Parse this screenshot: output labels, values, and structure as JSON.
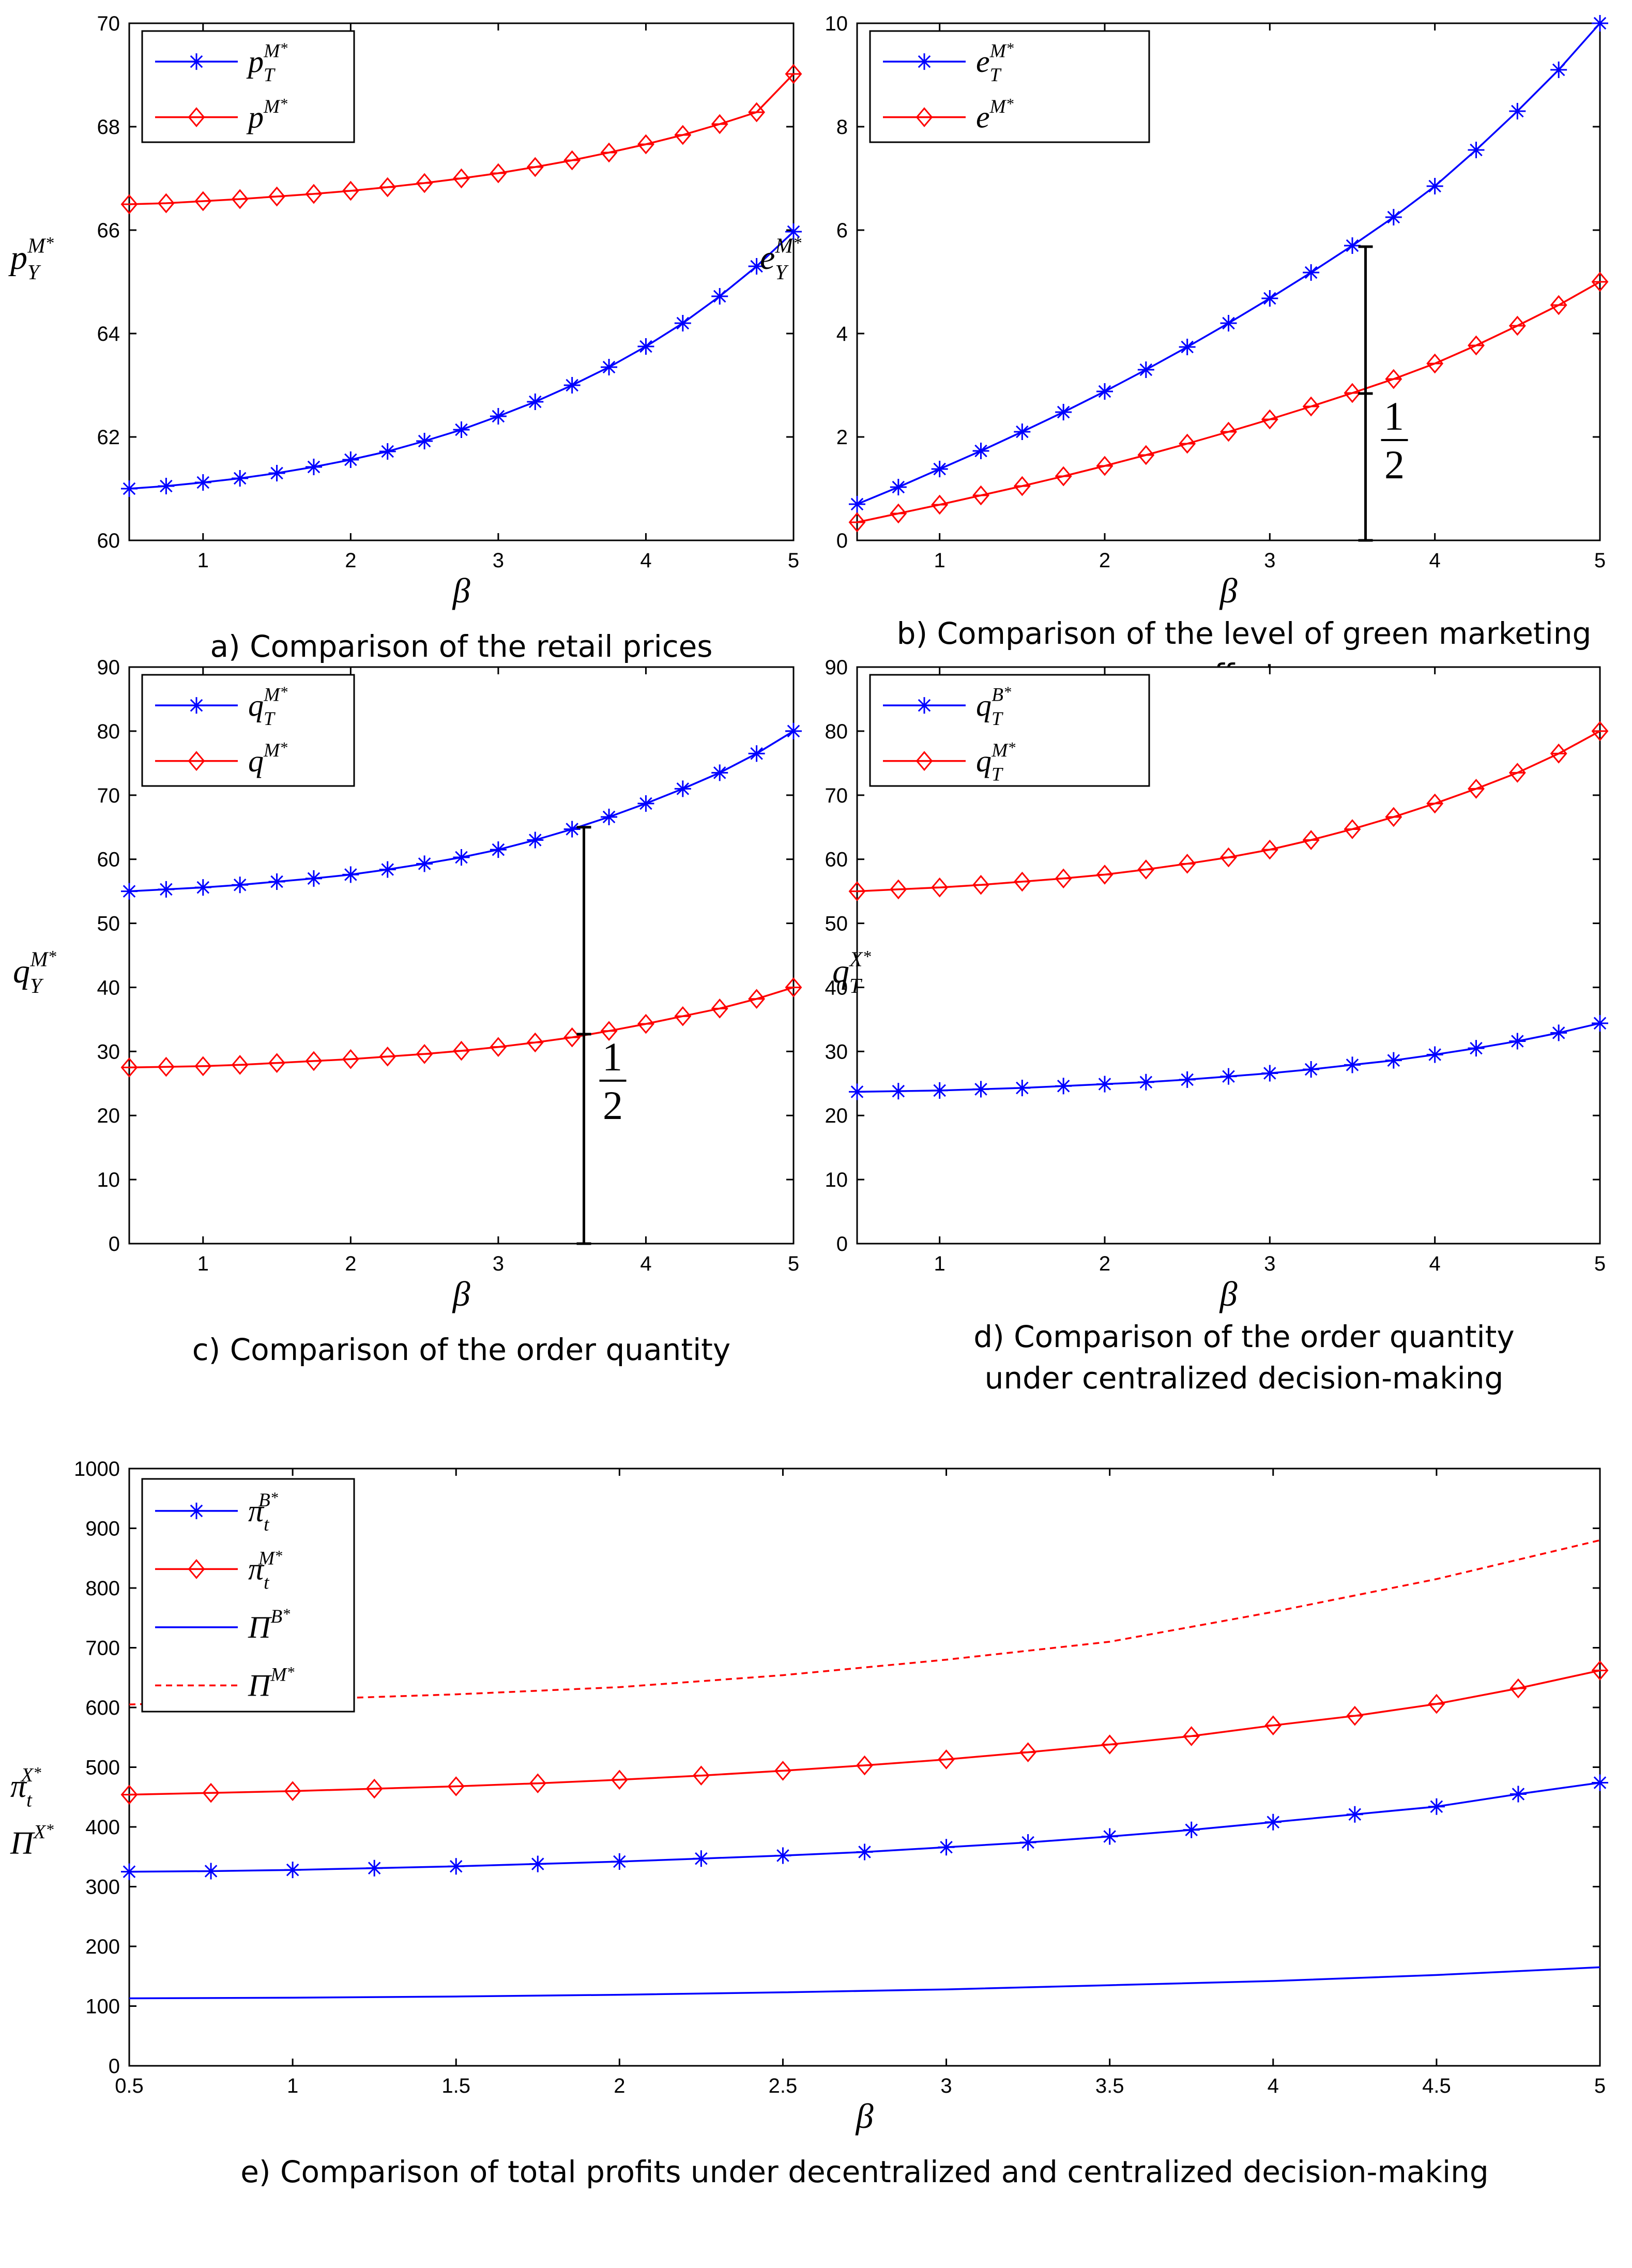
{
  "colors": {
    "blue": "#0000ff",
    "red": "#ff0000",
    "axis": "#000000",
    "background": "#ffffff"
  },
  "chart_data": [
    {
      "id": "a",
      "type": "line",
      "caption": "a) Comparison of the retail prices",
      "xlabel": "β",
      "ylabel": {
        "base": "p",
        "sub": "Y",
        "sup": "M",
        "star": "*"
      },
      "xlim": [
        0.5,
        5
      ],
      "ylim": [
        60,
        70
      ],
      "xticks": [
        1,
        2,
        3,
        4,
        5
      ],
      "xtick_labels": [
        "1",
        "2",
        "3",
        "4",
        "5"
      ],
      "yticks": [
        60,
        62,
        64,
        66,
        68,
        70
      ],
      "ytick_labels": [
        "60",
        "62",
        "64",
        "66",
        "68",
        "70"
      ],
      "legend_position": "top-left",
      "series": [
        {
          "name": "p_T^M*",
          "label": {
            "base": "p",
            "sub": "T",
            "sup": "M",
            "star": "*"
          },
          "color": "#0000ff",
          "marker": "star",
          "line": "solid",
          "x": [
            0.5,
            0.75,
            1,
            1.25,
            1.5,
            1.75,
            2,
            2.25,
            2.5,
            2.75,
            3,
            3.25,
            3.5,
            3.75,
            4,
            4.25,
            4.5,
            4.75,
            5
          ],
          "y": [
            61.0,
            61.05,
            61.12,
            61.2,
            61.3,
            61.42,
            61.56,
            61.72,
            61.92,
            62.14,
            62.4,
            62.68,
            63.0,
            63.35,
            63.75,
            64.2,
            64.72,
            65.3,
            65.97
          ]
        },
        {
          "name": "p^M*",
          "label": {
            "base": "p",
            "sub": "",
            "sup": "M",
            "star": "*"
          },
          "color": "#ff0000",
          "marker": "diamond",
          "line": "solid",
          "x": [
            0.5,
            0.75,
            1,
            1.25,
            1.5,
            1.75,
            2,
            2.25,
            2.5,
            2.75,
            3,
            3.25,
            3.5,
            3.75,
            4,
            4.25,
            4.5,
            4.75,
            5
          ],
          "y": [
            66.5,
            66.52,
            66.56,
            66.6,
            66.65,
            66.7,
            66.76,
            66.83,
            66.91,
            67.0,
            67.1,
            67.22,
            67.35,
            67.5,
            67.66,
            67.84,
            68.05,
            68.28,
            69.02
          ]
        }
      ]
    },
    {
      "id": "b",
      "type": "line",
      "caption_lines": [
        "b) Comparison of the level of green marketing",
        "efforts"
      ],
      "xlabel": "β",
      "ylabel": {
        "base": "e",
        "sub": "Y",
        "sup": "M",
        "star": "*"
      },
      "xlim": [
        0.5,
        5
      ],
      "ylim": [
        0,
        10
      ],
      "xticks": [
        1,
        2,
        3,
        4,
        5
      ],
      "xtick_labels": [
        "1",
        "2",
        "3",
        "4",
        "5"
      ],
      "yticks": [
        0,
        2,
        4,
        6,
        8,
        10
      ],
      "ytick_labels": [
        "0",
        "2",
        "4",
        "6",
        "8",
        "10"
      ],
      "legend_position": "top-left",
      "annotation": {
        "x": 3.58,
        "from": 0,
        "to": 5.68,
        "mark": 2.84,
        "numerator": "1",
        "denominator": "2"
      },
      "series": [
        {
          "name": "e_T^M*",
          "label": {
            "base": "e",
            "sub": "T",
            "sup": "M",
            "star": "*"
          },
          "color": "#0000ff",
          "marker": "star",
          "line": "solid",
          "x": [
            0.5,
            0.75,
            1,
            1.25,
            1.5,
            1.75,
            2,
            2.25,
            2.5,
            2.75,
            3,
            3.25,
            3.5,
            3.75,
            4,
            4.25,
            4.5,
            4.75,
            5
          ],
          "y": [
            0.7,
            1.03,
            1.38,
            1.73,
            2.1,
            2.48,
            2.88,
            3.3,
            3.74,
            4.2,
            4.68,
            5.18,
            5.7,
            6.25,
            6.85,
            7.55,
            8.3,
            9.1,
            10.0
          ]
        },
        {
          "name": "e^M*",
          "label": {
            "base": "e",
            "sub": "",
            "sup": "M",
            "star": "*"
          },
          "color": "#ff0000",
          "marker": "diamond",
          "line": "solid",
          "x": [
            0.5,
            0.75,
            1,
            1.25,
            1.5,
            1.75,
            2,
            2.25,
            2.5,
            2.75,
            3,
            3.25,
            3.5,
            3.75,
            4,
            4.25,
            4.5,
            4.75,
            5
          ],
          "y": [
            0.35,
            0.52,
            0.69,
            0.87,
            1.05,
            1.24,
            1.44,
            1.65,
            1.87,
            2.1,
            2.34,
            2.59,
            2.85,
            3.12,
            3.42,
            3.77,
            4.15,
            4.55,
            5.0
          ]
        }
      ]
    },
    {
      "id": "c",
      "type": "line",
      "caption": "c) Comparison of the order quantity",
      "xlabel": "β",
      "ylabel": {
        "base": "q",
        "sub": "Y",
        "sup": "M",
        "star": "*"
      },
      "xlim": [
        0.5,
        5
      ],
      "ylim": [
        0,
        90
      ],
      "xticks": [
        1,
        2,
        3,
        4,
        5
      ],
      "xtick_labels": [
        "1",
        "2",
        "3",
        "4",
        "5"
      ],
      "yticks": [
        0,
        10,
        20,
        30,
        40,
        50,
        60,
        70,
        80,
        90
      ],
      "ytick_labels": [
        "0",
        "10",
        "20",
        "30",
        "40",
        "50",
        "60",
        "70",
        "80",
        "90"
      ],
      "legend_position": "top-left",
      "annotation": {
        "x": 3.58,
        "from": 0,
        "to": 65,
        "mark": 32.7,
        "numerator": "1",
        "denominator": "2"
      },
      "series": [
        {
          "name": "q_T^M*",
          "label": {
            "base": "q",
            "sub": "T",
            "sup": "M",
            "star": "*"
          },
          "color": "#0000ff",
          "marker": "star",
          "line": "solid",
          "x": [
            0.5,
            0.75,
            1,
            1.25,
            1.5,
            1.75,
            2,
            2.25,
            2.5,
            2.75,
            3,
            3.25,
            3.5,
            3.75,
            4,
            4.25,
            4.5,
            4.75,
            5
          ],
          "y": [
            55.0,
            55.3,
            55.6,
            56.0,
            56.5,
            57.0,
            57.6,
            58.4,
            59.3,
            60.3,
            61.5,
            63.0,
            64.7,
            66.6,
            68.7,
            71.0,
            73.5,
            76.5,
            80.0
          ]
        },
        {
          "name": "q^M*",
          "label": {
            "base": "q",
            "sub": "",
            "sup": "M",
            "star": "*"
          },
          "color": "#ff0000",
          "marker": "diamond",
          "line": "solid",
          "x": [
            0.5,
            0.75,
            1,
            1.25,
            1.5,
            1.75,
            2,
            2.25,
            2.5,
            2.75,
            3,
            3.25,
            3.5,
            3.75,
            4,
            4.25,
            4.5,
            4.75,
            5
          ],
          "y": [
            27.5,
            27.6,
            27.7,
            27.9,
            28.2,
            28.5,
            28.8,
            29.2,
            29.6,
            30.1,
            30.7,
            31.4,
            32.2,
            33.2,
            34.3,
            35.5,
            36.7,
            38.2,
            40.0
          ]
        }
      ]
    },
    {
      "id": "d",
      "type": "line",
      "caption_lines": [
        "d) Comparison of the order quantity",
        "under centralized decision-making"
      ],
      "xlabel": "β",
      "ylabel": {
        "base": "q",
        "sub": "T",
        "sup": "X",
        "star": "*"
      },
      "xlim": [
        0.5,
        5
      ],
      "ylim": [
        0,
        90
      ],
      "xticks": [
        1,
        2,
        3,
        4,
        5
      ],
      "xtick_labels": [
        "1",
        "2",
        "3",
        "4",
        "5"
      ],
      "yticks": [
        0,
        10,
        20,
        30,
        40,
        50,
        60,
        70,
        80,
        90
      ],
      "ytick_labels": [
        "0",
        "10",
        "20",
        "30",
        "40",
        "50",
        "60",
        "70",
        "80",
        "90"
      ],
      "legend_position": "top-left",
      "series": [
        {
          "name": "q_T^B*",
          "label": {
            "base": "q",
            "sub": "T",
            "sup": "B",
            "star": "*"
          },
          "color": "#0000ff",
          "marker": "star",
          "line": "solid",
          "x": [
            0.5,
            0.75,
            1,
            1.25,
            1.5,
            1.75,
            2,
            2.25,
            2.5,
            2.75,
            3,
            3.25,
            3.5,
            3.75,
            4,
            4.25,
            4.5,
            4.75,
            5
          ],
          "y": [
            23.7,
            23.8,
            23.9,
            24.1,
            24.3,
            24.6,
            24.9,
            25.2,
            25.6,
            26.1,
            26.6,
            27.2,
            27.9,
            28.6,
            29.5,
            30.5,
            31.6,
            32.9,
            34.4
          ]
        },
        {
          "name": "q_T^M*",
          "label": {
            "base": "q",
            "sub": "T",
            "sup": "M",
            "star": "*"
          },
          "color": "#ff0000",
          "marker": "diamond",
          "line": "solid",
          "x": [
            0.5,
            0.75,
            1,
            1.25,
            1.5,
            1.75,
            2,
            2.25,
            2.5,
            2.75,
            3,
            3.25,
            3.5,
            3.75,
            4,
            4.25,
            4.5,
            4.75,
            5
          ],
          "y": [
            55.0,
            55.3,
            55.6,
            56.0,
            56.5,
            57.0,
            57.6,
            58.4,
            59.3,
            60.3,
            61.5,
            63.0,
            64.7,
            66.6,
            68.7,
            71.0,
            73.5,
            76.5,
            80.0
          ]
        }
      ]
    },
    {
      "id": "e",
      "type": "line",
      "caption": "e) Comparison of total profits under decentralized and centralized decision-making",
      "xlabel": "β",
      "ylabel_lines": [
        {
          "base": "π",
          "sub": "t",
          "sup": "X",
          "star": "*"
        },
        {
          "base": "Π",
          "sub": "",
          "sup": "X",
          "star": "*"
        }
      ],
      "xlim": [
        0.5,
        5
      ],
      "ylim": [
        0,
        1000
      ],
      "xticks": [
        0.5,
        1,
        1.5,
        2,
        2.5,
        3,
        3.5,
        4,
        4.5,
        5
      ],
      "xtick_labels": [
        "0.5",
        "1",
        "1.5",
        "2",
        "2.5",
        "3",
        "3.5",
        "4",
        "4.5",
        "5"
      ],
      "yticks": [
        0,
        100,
        200,
        300,
        400,
        500,
        600,
        700,
        800,
        900,
        1000
      ],
      "ytick_labels": [
        "0",
        "100",
        "200",
        "300",
        "400",
        "500",
        "600",
        "700",
        "800",
        "900",
        "1000"
      ],
      "legend_position": "top-left",
      "series": [
        {
          "name": "π_t^B*",
          "label": {
            "base": "π",
            "sub": "t",
            "sup": "B",
            "star": "*"
          },
          "color": "#0000ff",
          "marker": "star",
          "line": "solid",
          "x": [
            0.5,
            0.75,
            1,
            1.25,
            1.5,
            1.75,
            2,
            2.25,
            2.5,
            2.75,
            3,
            3.25,
            3.5,
            3.75,
            4,
            4.25,
            4.5,
            4.75,
            5
          ],
          "y": [
            325,
            326,
            328,
            331,
            334,
            338,
            342,
            347,
            352,
            358,
            366,
            374,
            384,
            395,
            408,
            421,
            434,
            455,
            474
          ]
        },
        {
          "name": "π_t^M*",
          "label": {
            "base": "π",
            "sub": "t",
            "sup": "M",
            "star": "*"
          },
          "color": "#ff0000",
          "marker": "diamond",
          "line": "solid",
          "x": [
            0.5,
            0.75,
            1,
            1.25,
            1.5,
            1.75,
            2,
            2.25,
            2.5,
            2.75,
            3,
            3.25,
            3.5,
            3.75,
            4,
            4.25,
            4.5,
            4.75,
            5
          ],
          "y": [
            454,
            457,
            460,
            464,
            468,
            473,
            479,
            486,
            494,
            503,
            513,
            525,
            538,
            552,
            570,
            586,
            606,
            632,
            662
          ]
        },
        {
          "name": "Π^B*",
          "label": {
            "base": "Π",
            "sub": "",
            "sup": "B",
            "star": "*"
          },
          "color": "#0000ff",
          "marker": "none",
          "line": "solid",
          "x": [
            0.5,
            1,
            1.5,
            2,
            2.5,
            3,
            3.5,
            4,
            4.5,
            5
          ],
          "y": [
            113,
            114,
            116,
            119,
            123,
            128,
            135,
            142,
            152,
            165
          ]
        },
        {
          "name": "Π^M*",
          "label": {
            "base": "Π",
            "sub": "",
            "sup": "M",
            "star": "*"
          },
          "color": "#ff0000",
          "marker": "none",
          "line": "dashed",
          "x": [
            0.5,
            1,
            1.5,
            2,
            2.5,
            3,
            3.5,
            4,
            4.5,
            5
          ],
          "y": [
            605,
            613,
            622,
            634,
            654,
            680,
            710,
            760,
            815,
            880
          ]
        }
      ]
    }
  ]
}
